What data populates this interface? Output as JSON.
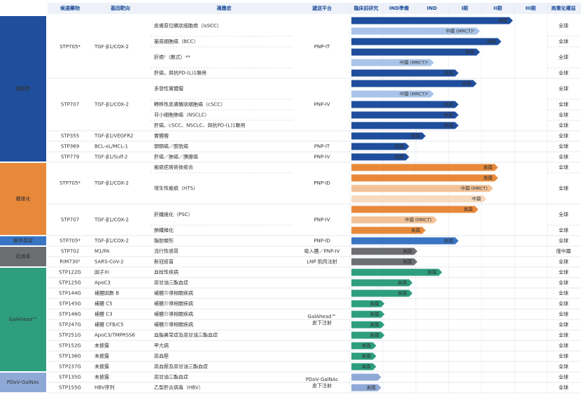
{
  "header": {
    "columns": [
      "候選藥物",
      "基因靶向",
      "適應症",
      "遞送平台",
      "臨床前研究",
      "IND準備",
      "IND",
      "I期",
      "II期",
      "III期",
      "商業化權益"
    ]
  },
  "sections": [
    {
      "area": "腫瘤學",
      "color": "#1f4e9c",
      "drugs": [
        {
          "name": "STP705*",
          "target": "TGF-β1/COX-2",
          "platform": "PNP-IT",
          "indications": [
            {
              "name": "皮膚原位鱗狀細胞癌（isSCC）",
              "rights": "全球",
              "bars": [
                {
                  "label": "美國",
                  "end": 4.95
                },
                {
                  "label": "中國 (MRCT)²",
                  "end": 3.95,
                  "color": "#a9c4e8"
                }
              ]
            },
            {
              "name": "基底細胞癌（BCC）",
              "rights": "全球",
              "bars": [
                {
                  "label": "美國",
                  "end": 4.6
                }
              ]
            },
            {
              "name": "肝癌¹（散式）**",
              "rights": "全球",
              "bars": [
                {
                  "label": "美國",
                  "end": 3.95
                },
                {
                  "label": "中國 (MRCT)²",
                  "end": 2.55,
                  "color": "#a9c4e8"
                }
              ]
            },
            {
              "name": "肝癌，與抗PD-(L)1聯用",
              "rights": "全球",
              "bars": [
                {
                  "label": "美國",
                  "end": 3.3
                }
              ]
            }
          ]
        },
        {
          "name": "STP707",
          "target": "TGF-β1/COX-2",
          "platform": "PNP-IV",
          "indications": [
            {
              "name": "多發性實體瘤",
              "rights": "全球",
              "bars": [
                {
                  "label": "美國",
                  "end": 3.85
                },
                {
                  "label": "中國 (MRCT)²",
                  "end": 2.55,
                  "color": "#a9c4e8"
                }
              ]
            },
            {
              "name": "轉移性皮膚鱗狀細胞癌（cSCC）",
              "rights": "全球",
              "bars": [
                {
                  "label": "美國",
                  "end": 3.3
                }
              ]
            },
            {
              "name": "非小細胞肺癌（NSCLC）",
              "rights": "全球",
              "bars": [
                {
                  "label": "美國",
                  "end": 3.3
                }
              ]
            },
            {
              "name": "肝癌、cSCC、NSCLC、與抗PD-(L)1聯用",
              "rights": "全球",
              "bars": [
                {
                  "label": "美國",
                  "end": 3.3
                }
              ]
            }
          ]
        },
        {
          "name": "STP355",
          "target": "TGF-β1/VEGFR2",
          "indications": [
            {
              "name": "實體瘤",
              "rights": "全球",
              "bars": [
                {
                  "label": "美國",
                  "end": 2.3
                }
              ]
            }
          ]
        },
        {
          "name": "STP369",
          "target": "BCL-xL/MCL-1",
          "platform": "PNP-IT",
          "indications": [
            {
              "name": "頭頸癌／膀胱癌",
              "rights": "全球",
              "bars": [
                {
                  "label": "美國",
                  "end": 1.8
                }
              ]
            }
          ]
        },
        {
          "name": "STP779",
          "target": "TGF-β1/Sulf-2",
          "platform": "PNP-IV",
          "indications": [
            {
              "name": "肝癌／肺癌／胰腺癌",
              "rights": "全球",
              "bars": [
                {
                  "label": "美國",
                  "end": 1.8
                }
              ]
            }
          ]
        }
      ]
    },
    {
      "area": "纖維化",
      "color": "#e8893a",
      "drugs": [
        {
          "name": "STP705*",
          "target": "TGF-β1/COX-2",
          "platform": "PNP-ID",
          "indications": [
            {
              "name": "瘢痕疙瘩術後癒合",
              "rights": "全球",
              "bars": [
                {
                  "label": "美國",
                  "end": 4.5
                }
              ]
            },
            {
              "name": "增生性瘢痕（HTS）",
              "rights": "全球",
              "bars": [
                {
                  "label": "美國",
                  "end": 4.5
                },
                {
                  "label": "中國 (MRCT)",
                  "end": 4.35,
                  "color": "#f2c296"
                },
                {
                  "label": "中國",
                  "end": 4.15,
                  "color": "#f7d9bd"
                }
              ]
            }
          ]
        },
        {
          "name": "STP707",
          "target": "TGF-β1/COX-2",
          "platform": "PNP-IV",
          "indications": [
            {
              "name": "肝纖維化（PSC）",
              "rights": "全球",
              "bars": [
                {
                  "label": "美國",
                  "end": 3.9
                },
                {
                  "label": "中國 (MRCT)",
                  "end": 2.65,
                  "color": "#f2c296"
                }
              ]
            },
            {
              "name": "肺纖維化",
              "rights": "全球",
              "bars": [
                {
                  "label": "美國",
                  "end": 2.3
                }
              ]
            }
          ]
        }
      ]
    },
    {
      "area": "醫學美容",
      "color": "#3a75c4",
      "drugs": [
        {
          "name": "STP705*",
          "target": "TGF-β1/COX-2",
          "platform": "PNP-ID",
          "indications": [
            {
              "name": "脂肪塑形",
              "rights": "全球",
              "bars": [
                {
                  "label": "美國",
                  "end": 3.3
                }
              ]
            }
          ]
        }
      ]
    },
    {
      "area": "抗病毒",
      "color": "#6d6e71",
      "drugs": [
        {
          "name": "STP702",
          "target": "M1/PA",
          "platform": "吸入體／PNP-IV",
          "indications": [
            {
              "name": "流行性感冒",
              "rights": "僅中國",
              "bars": [
                {
                  "label": "美國",
                  "end": 2.05
                }
              ]
            }
          ]
        },
        {
          "name": "RIM730²",
          "target": "SARS-CoV-2",
          "platform": "LNP 肌肉注射",
          "indications": [
            {
              "name": "新冠疫苗",
              "rights": "全球",
              "bars": [
                {
                  "label": "美國",
                  "end": 2.05
                }
              ]
            }
          ]
        }
      ]
    },
    {
      "area": "GalAhead™",
      "color": "#2e9e7e",
      "platform": "GalAhead™ 皮下注射",
      "drugs": [
        {
          "name": "STP122G",
          "target": "因子XI",
          "indications": [
            {
              "name": "血栓性疾病",
              "rights": "全球",
              "bars": [
                {
                  "label": "美國",
                  "end": 2.8
                }
              ]
            }
          ]
        },
        {
          "name": "STP125G",
          "target": "ApoC3",
          "indications": [
            {
              "name": "高甘油三酯血症",
              "rights": "全球",
              "bars": [
                {
                  "label": "美國",
                  "end": 1.9
                }
              ]
            }
          ]
        },
        {
          "name": "STP144G",
          "target": "補體因數 B",
          "indications": [
            {
              "name": "補體介導相關疾病",
              "rights": "全球",
              "bars": [
                {
                  "label": "美國",
                  "end": 1.9
                }
              ]
            }
          ]
        },
        {
          "name": "STP145G",
          "target": "補體 C5",
          "indications": [
            {
              "name": "補體介導相關疾病",
              "rights": "全球",
              "bars": [
                {
                  "label": "美國",
                  "end": 1.05
                }
              ]
            }
          ]
        },
        {
          "name": "STP146G",
          "target": "補體 C3",
          "indications": [
            {
              "name": "補體介導相關疾病",
              "rights": "全球",
              "bars": [
                {
                  "label": "美國",
                  "end": 1.05
                }
              ]
            }
          ]
        },
        {
          "name": "STP247G",
          "target": "補體 CFB/C5",
          "indications": [
            {
              "name": "補體介導相關疾病",
              "rights": "全球",
              "bars": [
                {
                  "label": "美國",
                  "end": 1.05
                }
              ]
            }
          ]
        },
        {
          "name": "STP251G",
          "target": "ApoC3/TMPRSS6",
          "indications": [
            {
              "name": "血脂異常症及高甘油三酯血症",
              "rights": "全球",
              "bars": [
                {
                  "label": "美國",
                  "end": 1.05
                }
              ]
            }
          ]
        },
        {
          "name": "STP152G",
          "target": "未披露",
          "indications": [
            {
              "name": "甲亢病",
              "rights": "全球",
              "bars": [
                {
                  "label": "美國",
                  "end": 0.8
                }
              ]
            }
          ]
        },
        {
          "name": "STP136G",
          "target": "未披露",
          "indications": [
            {
              "name": "高血壓",
              "rights": "全球",
              "bars": [
                {
                  "label": "美國",
                  "end": 0.8
                }
              ]
            }
          ]
        },
        {
          "name": "STP237G",
          "target": "未披露",
          "indications": [
            {
              "name": "高血壓及高甘油三酯血症",
              "rights": "全球",
              "bars": [
                {
                  "label": "美國",
                  "end": 0.8
                }
              ]
            }
          ]
        }
      ]
    },
    {
      "area": "PDoV-GalNAc",
      "color": "#8ea9d6",
      "platform": "PDoV-GalNAc 皮下注射",
      "drugs": [
        {
          "name": "STP135G",
          "target": "未披露",
          "indications": [
            {
              "name": "高甘油三酯血症",
              "rights": "全球",
              "bars": [
                {
                  "end": 0.95
                }
              ]
            }
          ]
        },
        {
          "name": "STP155G",
          "target": "HBV序列",
          "indications": [
            {
              "name": "乙型肝炎病毒（HBV）",
              "rights": "全球",
              "bars": [
                {
                  "label": "美國",
                  "end": 0.95
                }
              ]
            }
          ]
        }
      ]
    }
  ]
}
